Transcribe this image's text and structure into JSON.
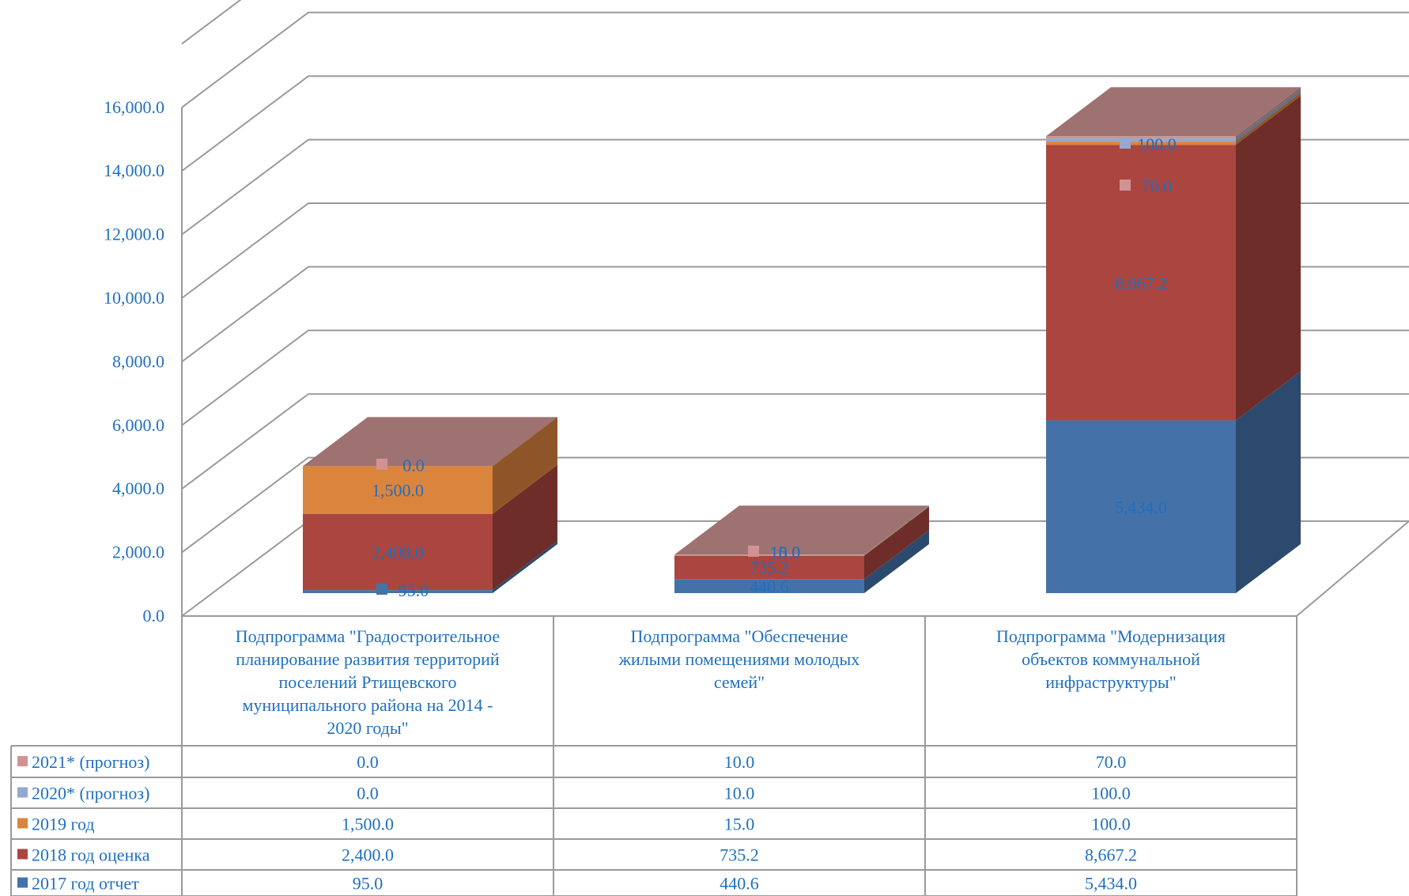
{
  "chart_data": {
    "type": "bar",
    "stacked": true,
    "three_d": true,
    "ylim": [
      0,
      18000
    ],
    "y_ticks": [
      "0.0",
      "2,000.0",
      "4,000.0",
      "6,000.0",
      "8,000.0",
      "10,000.0",
      "12,000.0",
      "14,000.0",
      "16,000.0"
    ],
    "y_tick_values": [
      0,
      2000,
      4000,
      6000,
      8000,
      10000,
      12000,
      14000,
      16000
    ],
    "grid": true,
    "legend_placement": "bottom-left data table",
    "categories": [
      "Подпрограмма \"Градостроительное планирование развития территорий поселений Ртищевского муниципального района на 2014 - 2020 годы\"",
      "Подпрограмма \"Обеспечение жилыми помещениями молодых семей\"",
      "Подпрограмма \"Модернизация объектов коммунальной инфраструктуры\""
    ],
    "category_lines": [
      [
        "Подпрограмма \"Градостроительное",
        "планирование развития территорий",
        "поселений Ртищевского",
        "муниципального района на 2014 -",
        "2020 годы\""
      ],
      [
        "Подпрограмма \"Обеспечение",
        "жилыми помещениями молодых",
        "семей\""
      ],
      [
        "Подпрограмма \"Модернизация",
        "объектов коммунальной",
        "инфраструктуры\""
      ]
    ],
    "series": [
      {
        "name": "2017 год отчет",
        "values": [
          95.0,
          440.6,
          5434.0
        ],
        "labels": [
          "95.0",
          "440.6",
          "5,434.0"
        ],
        "color": "#4472a8"
      },
      {
        "name": "2018 год оценка",
        "values": [
          2400.0,
          735.2,
          8667.2
        ],
        "labels": [
          "2,400.0",
          "735.2",
          "8,667.2"
        ],
        "color": "#ab4540"
      },
      {
        "name": "2019  год",
        "values": [
          1500.0,
          15.0,
          100.0
        ],
        "labels": [
          "1,500.0",
          "15.0",
          "100.0"
        ],
        "color": "#db843d"
      },
      {
        "name": "2020* (прогноз)",
        "values": [
          0.0,
          10.0,
          100.0
        ],
        "labels": [
          "0.0",
          "10.0",
          "100.0"
        ],
        "color": "#93a9cf"
      },
      {
        "name": "2021* (прогноз)",
        "values": [
          0.0,
          10.0,
          70.0
        ],
        "labels": [
          "0.0",
          "10.0",
          "70.0"
        ],
        "color": "#d19392"
      }
    ],
    "legend_order": [
      "2021* (прогноз)",
      "2020* (прогноз)",
      "2019  год",
      "2018 год оценка",
      "2017 год отчет"
    ],
    "colors": {
      "top_face": "#9e7270",
      "axis_text": "#1f6fbf",
      "grid": "#9a9a9a"
    }
  }
}
